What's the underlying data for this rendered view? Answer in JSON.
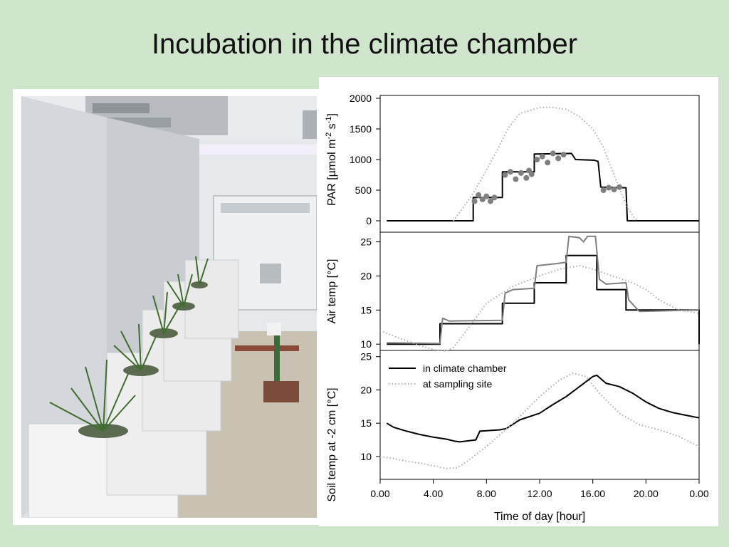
{
  "slide": {
    "title": "Incubation in the climate chamber"
  },
  "photo": {
    "icon": "climate-chamber-photo"
  },
  "chart_data": {
    "type": "line",
    "xlabel": "Time of day [hour]",
    "xticks": [
      "0.00",
      "4.00",
      "8.00",
      "12.00",
      "16.00",
      "20.00",
      "0.00"
    ],
    "xlim": [
      0,
      24
    ],
    "legend": {
      "placement": "inside-top-left",
      "entries": [
        "in climate chamber",
        "at sampling site"
      ]
    },
    "colors": {
      "chamber": "#000000",
      "site": "#b0b0b0",
      "measured": "#808080"
    },
    "panels": [
      {
        "id": "par",
        "ylabel": "PAR [µmol m-2 s-1]",
        "ylabel_parts": [
          "PAR [µmol m",
          "-2",
          " s",
          "-1",
          "]"
        ],
        "ylim": [
          0,
          2000
        ],
        "yticks": [
          0,
          500,
          1000,
          1500,
          2000
        ],
        "series": [
          {
            "style": "chamber",
            "points": [
              [
                0.5,
                0
              ],
              [
                7,
                0
              ],
              [
                7,
                380
              ],
              [
                9.2,
                380
              ],
              [
                9.2,
                800
              ],
              [
                11.6,
                800
              ],
              [
                11.6,
                1090
              ],
              [
                14.4,
                1100
              ],
              [
                14.7,
                1000
              ],
              [
                16,
                990
              ],
              [
                16.1,
                990
              ],
              [
                16.4,
                970
              ],
              [
                16.6,
                550
              ],
              [
                18.5,
                540
              ],
              [
                18.6,
                0
              ],
              [
                24,
                0
              ]
            ]
          },
          {
            "style": "site",
            "points": [
              [
                5.5,
                0
              ],
              [
                6.2,
                200
              ],
              [
                7,
                450
              ],
              [
                7.8,
                750
              ],
              [
                8.8,
                1150
              ],
              [
                9.6,
                1500
              ],
              [
                10.5,
                1750
              ],
              [
                12,
                1850
              ],
              [
                13,
                1850
              ],
              [
                14,
                1820
              ],
              [
                15,
                1700
              ],
              [
                16,
                1500
              ],
              [
                16.8,
                1200
              ],
              [
                17.6,
                750
              ],
              [
                18.2,
                420
              ],
              [
                18.8,
                150
              ],
              [
                19.3,
                0
              ]
            ]
          },
          {
            "style": "measured",
            "points": [
              [
                7.1,
                320
              ],
              [
                7.4,
                420
              ],
              [
                7.7,
                350
              ],
              [
                8.0,
                400
              ],
              [
                8.3,
                320
              ],
              [
                8.6,
                380
              ],
              [
                9.4,
                750
              ],
              [
                9.8,
                800
              ],
              [
                10.2,
                680
              ],
              [
                10.6,
                780
              ],
              [
                11.0,
                700
              ],
              [
                11.4,
                760
              ],
              [
                11.2,
                820
              ],
              [
                11.8,
                1000
              ],
              [
                12.2,
                1050
              ],
              [
                12.6,
                950
              ],
              [
                13.0,
                1100
              ],
              [
                13.4,
                1020
              ],
              [
                13.8,
                1080
              ],
              [
                16.8,
                500
              ],
              [
                17.2,
                540
              ],
              [
                17.6,
                510
              ],
              [
                18.0,
                550
              ]
            ]
          }
        ]
      },
      {
        "id": "air",
        "ylabel": "Air temp [°C]",
        "ylim": [
          9.5,
          26
        ],
        "yticks": [
          10,
          15,
          20,
          25
        ],
        "series": [
          {
            "style": "chamber",
            "points": [
              [
                0.5,
                10
              ],
              [
                4.5,
                10
              ],
              [
                4.5,
                13
              ],
              [
                9.2,
                13
              ],
              [
                9.2,
                16
              ],
              [
                11.6,
                16
              ],
              [
                11.6,
                19
              ],
              [
                14,
                19
              ],
              [
                14,
                23
              ],
              [
                16.3,
                23
              ],
              [
                16.3,
                18
              ],
              [
                18.5,
                18
              ],
              [
                18.5,
                15
              ],
              [
                24,
                15
              ],
              [
                24,
                10
              ]
            ]
          },
          {
            "style": "measured",
            "points": [
              [
                0.5,
                10.2
              ],
              [
                4.5,
                10.1
              ],
              [
                4.7,
                13.8
              ],
              [
                5.2,
                13.4
              ],
              [
                9.2,
                13.5
              ],
              [
                9.4,
                17.5
              ],
              [
                10,
                18
              ],
              [
                11.6,
                18.2
              ],
              [
                11.8,
                21.5
              ],
              [
                13.2,
                21.8
              ],
              [
                14,
                22
              ],
              [
                14.2,
                25.8
              ],
              [
                15,
                25.6
              ],
              [
                15.3,
                25
              ],
              [
                15.6,
                25.8
              ],
              [
                16.2,
                25.8
              ],
              [
                16.5,
                19.5
              ],
              [
                17,
                18.8
              ],
              [
                18.5,
                19
              ],
              [
                18.7,
                16.5
              ],
              [
                19.5,
                14.8
              ],
              [
                24,
                15
              ]
            ]
          },
          {
            "style": "site",
            "points": [
              [
                0,
                12
              ],
              [
                1,
                11.2
              ],
              [
                2,
                10.5
              ],
              [
                3,
                9.8
              ],
              [
                4,
                9.2
              ],
              [
                5,
                9
              ],
              [
                5.5,
                9.5
              ],
              [
                6.5,
                12
              ],
              [
                8,
                16
              ],
              [
                10,
                18.5
              ],
              [
                12,
                20
              ],
              [
                13.5,
                21
              ],
              [
                15,
                21.5
              ],
              [
                16,
                21
              ],
              [
                17.5,
                20
              ],
              [
                19,
                19
              ],
              [
                20,
                18
              ],
              [
                21,
                16.5
              ],
              [
                22.5,
                15
              ],
              [
                24,
                14.5
              ]
            ]
          }
        ]
      },
      {
        "id": "soil",
        "ylabel": "Soil temp at -2 cm [°C]",
        "ylim": [
          7,
          25.5
        ],
        "yticks": [
          10,
          15,
          20,
          25
        ],
        "series": [
          {
            "style": "chamber",
            "points": [
              [
                0.5,
                15
              ],
              [
                1,
                14.4
              ],
              [
                2,
                13.8
              ],
              [
                3,
                13.3
              ],
              [
                4,
                12.9
              ],
              [
                5,
                12.6
              ],
              [
                5.6,
                12.3
              ],
              [
                6,
                12.2
              ],
              [
                7.2,
                12.5
              ],
              [
                7.5,
                13.8
              ],
              [
                9,
                14
              ],
              [
                9.5,
                14.2
              ],
              [
                10.5,
                15.5
              ],
              [
                12,
                16.5
              ],
              [
                13,
                17.8
              ],
              [
                14,
                19
              ],
              [
                15,
                20.5
              ],
              [
                16,
                22
              ],
              [
                16.3,
                22.2
              ],
              [
                17,
                21
              ],
              [
                18,
                20.5
              ],
              [
                19,
                19.5
              ],
              [
                20,
                18.2
              ],
              [
                21,
                17.2
              ],
              [
                22,
                16.6
              ],
              [
                23,
                16.2
              ],
              [
                24,
                15.8
              ]
            ]
          },
          {
            "style": "site",
            "points": [
              [
                0,
                10
              ],
              [
                1,
                9.7
              ],
              [
                2,
                9.3
              ],
              [
                3,
                9
              ],
              [
                4,
                8.6
              ],
              [
                5,
                8.2
              ],
              [
                5.8,
                8.3
              ],
              [
                6.5,
                9.2
              ],
              [
                8,
                11.5
              ],
              [
                10,
                15
              ],
              [
                12,
                19
              ],
              [
                13.5,
                21.5
              ],
              [
                14.5,
                22.5
              ],
              [
                15.5,
                22
              ],
              [
                16.5,
                19.5
              ],
              [
                18,
                16.5
              ],
              [
                19.5,
                14.8
              ],
              [
                21,
                14
              ],
              [
                22.5,
                13
              ],
              [
                24,
                11.5
              ]
            ]
          }
        ]
      }
    ]
  }
}
